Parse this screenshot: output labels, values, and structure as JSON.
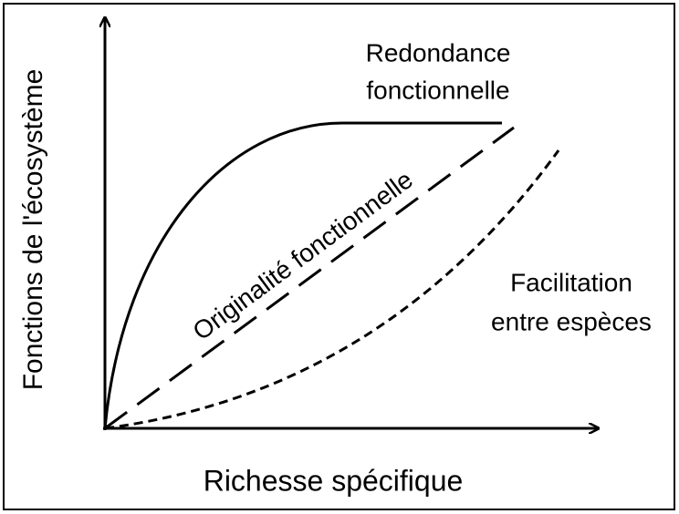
{
  "y_axis_label": "Fonctions de l'écosystème",
  "x_axis_label": "Richesse spécifique",
  "curves": [
    {
      "lines": [
        "Redondance",
        "fonctionnelle"
      ]
    },
    {
      "lines": [
        "Originalité fonctionnelle"
      ]
    },
    {
      "lines": [
        "Facilitation",
        "entre espèces"
      ]
    }
  ]
}
